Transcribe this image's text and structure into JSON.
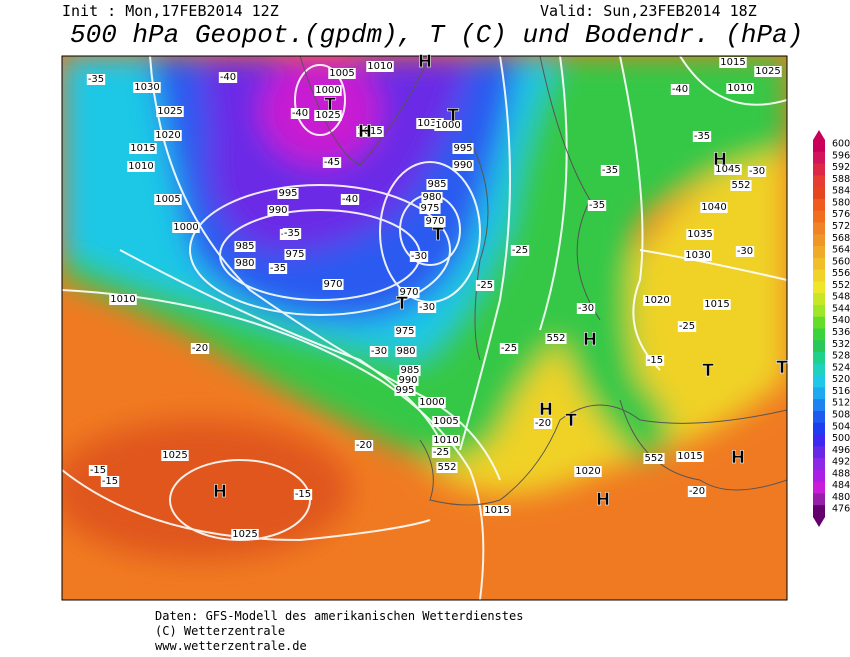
{
  "header": {
    "init": "Init : Mon,17FEB2014 12Z",
    "valid": "Valid: Sun,23FEB2014 18Z",
    "title": "500 hPa Geopot.(gpdm), T (C) und Bodendr. (hPa)"
  },
  "map": {
    "pressure_labels": [
      "1005",
      "1000",
      "1010",
      "1030",
      "1025",
      "1020",
      "1015",
      "1010",
      "1005",
      "1000",
      "995",
      "990",
      "985",
      "980",
      "975",
      "970",
      "970",
      "970",
      "975",
      "980",
      "985",
      "990",
      "995",
      "1000",
      "1005",
      "1010",
      "1045",
      "1040",
      "1035",
      "1030",
      "1020",
      "1015",
      "1025",
      "1025",
      "1030",
      "1020",
      "1015",
      "1015",
      "1010",
      "1015",
      "1000",
      "995",
      "990",
      "985",
      "980",
      "975",
      "1010",
      "1025",
      "1015",
      "1025"
    ],
    "temperature_labels": [
      "-35",
      "-40",
      "-40",
      "-45",
      "-40",
      "-35",
      "-35",
      "-35",
      "-30",
      "-30",
      "-30",
      "-25",
      "-30",
      "-25",
      "-20",
      "-25",
      "-25",
      "-15",
      "-15",
      "-15",
      "-20",
      "-20",
      "-20",
      "-40",
      "-35",
      "-30",
      "-35",
      "-35",
      "-30",
      "-25",
      "-15"
    ],
    "contour_labels": [
      "552",
      "552",
      "552",
      "552"
    ],
    "symbols": [
      "T",
      "T",
      "T",
      "T",
      "T",
      "H",
      "H",
      "H",
      "H",
      "H",
      "T",
      "T",
      "H",
      "H",
      "H"
    ]
  },
  "colorbar": {
    "values": [
      600,
      596,
      592,
      588,
      584,
      580,
      576,
      572,
      568,
      564,
      560,
      556,
      552,
      548,
      544,
      540,
      536,
      532,
      528,
      524,
      520,
      516,
      512,
      508,
      504,
      500,
      496,
      492,
      488,
      484,
      480,
      476
    ],
    "colors": [
      "#c8005a",
      "#d2145a",
      "#dc2846",
      "#e63c32",
      "#e6461e",
      "#f05a1e",
      "#f06e1e",
      "#f08228",
      "#f09628",
      "#f0aa28",
      "#f0be28",
      "#f0d228",
      "#f0e628",
      "#c8e628",
      "#a0e628",
      "#64dc28",
      "#3cd23c",
      "#28c85a",
      "#1ed28c",
      "#1ed2be",
      "#1ec8e6",
      "#1eaaf0",
      "#1e82f0",
      "#1e5af0",
      "#1e3cf0",
      "#3c28f0",
      "#6428e6",
      "#8c28e6",
      "#aa1ee6",
      "#c81edc",
      "#961eaa",
      "#64006e"
    ]
  },
  "footer": {
    "source": "Daten: GFS-Modell des amerikanischen Wetterdienstes",
    "copyright": "(C) Wetterzentrale",
    "url": "www.wetterzentrale.de"
  }
}
